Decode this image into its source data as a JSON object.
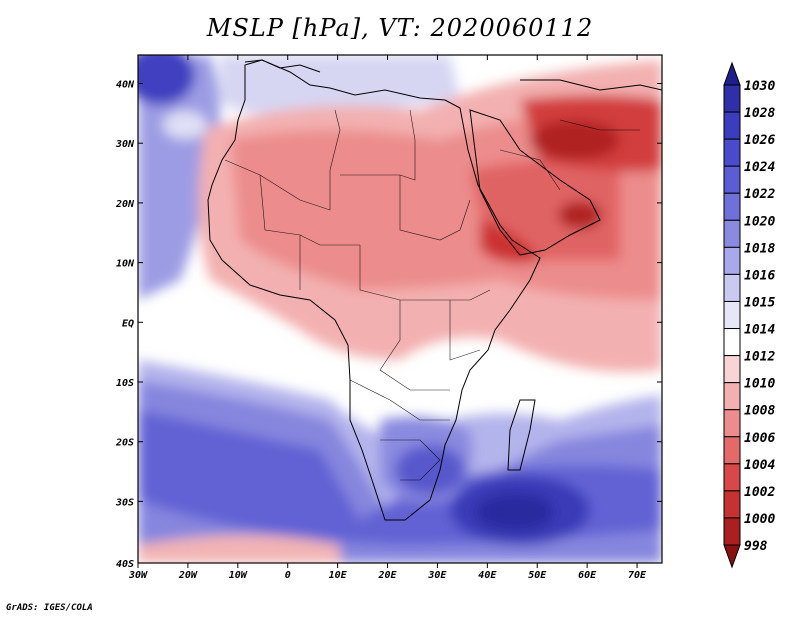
{
  "title": "MSLP [hPa], VT: 2020060112",
  "credit": "GrADS: IGES/COLA",
  "lon_ticks": [
    "30W",
    "20W",
    "10W",
    "0",
    "10E",
    "20E",
    "30E",
    "40E",
    "50E",
    "60E",
    "70E"
  ],
  "lat_ticks": [
    "40N",
    "30N",
    "20N",
    "10N",
    "EQ",
    "10S",
    "20S",
    "30S",
    "40S"
  ],
  "colorbar": {
    "labels": [
      "1030",
      "1028",
      "1026",
      "1024",
      "1022",
      "1020",
      "1018",
      "1016",
      "1015",
      "1014",
      "1012",
      "1010",
      "1008",
      "1006",
      "1004",
      "1002",
      "1000",
      "998"
    ],
    "colors": [
      "#1e1e8c",
      "#2f2fa8",
      "#3c3cbf",
      "#4a4acd",
      "#5c5cd6",
      "#7070db",
      "#8a8ae0",
      "#a8a8ea",
      "#c9c9f2",
      "#e6e6f7",
      "#ffffff",
      "#f8d4d4",
      "#f3b0b0",
      "#ec8c8c",
      "#e46a6a",
      "#d84848",
      "#c43232",
      "#aa2020",
      "#8a1010"
    ]
  },
  "features": {
    "high_southwest": "high-pressure-southwest-atlantic",
    "high_south_madagascar": "high-pressure-south-of-madagascar",
    "low_arabia": "low-pressure-arabia",
    "low_iran": "low-pressure-iran"
  }
}
